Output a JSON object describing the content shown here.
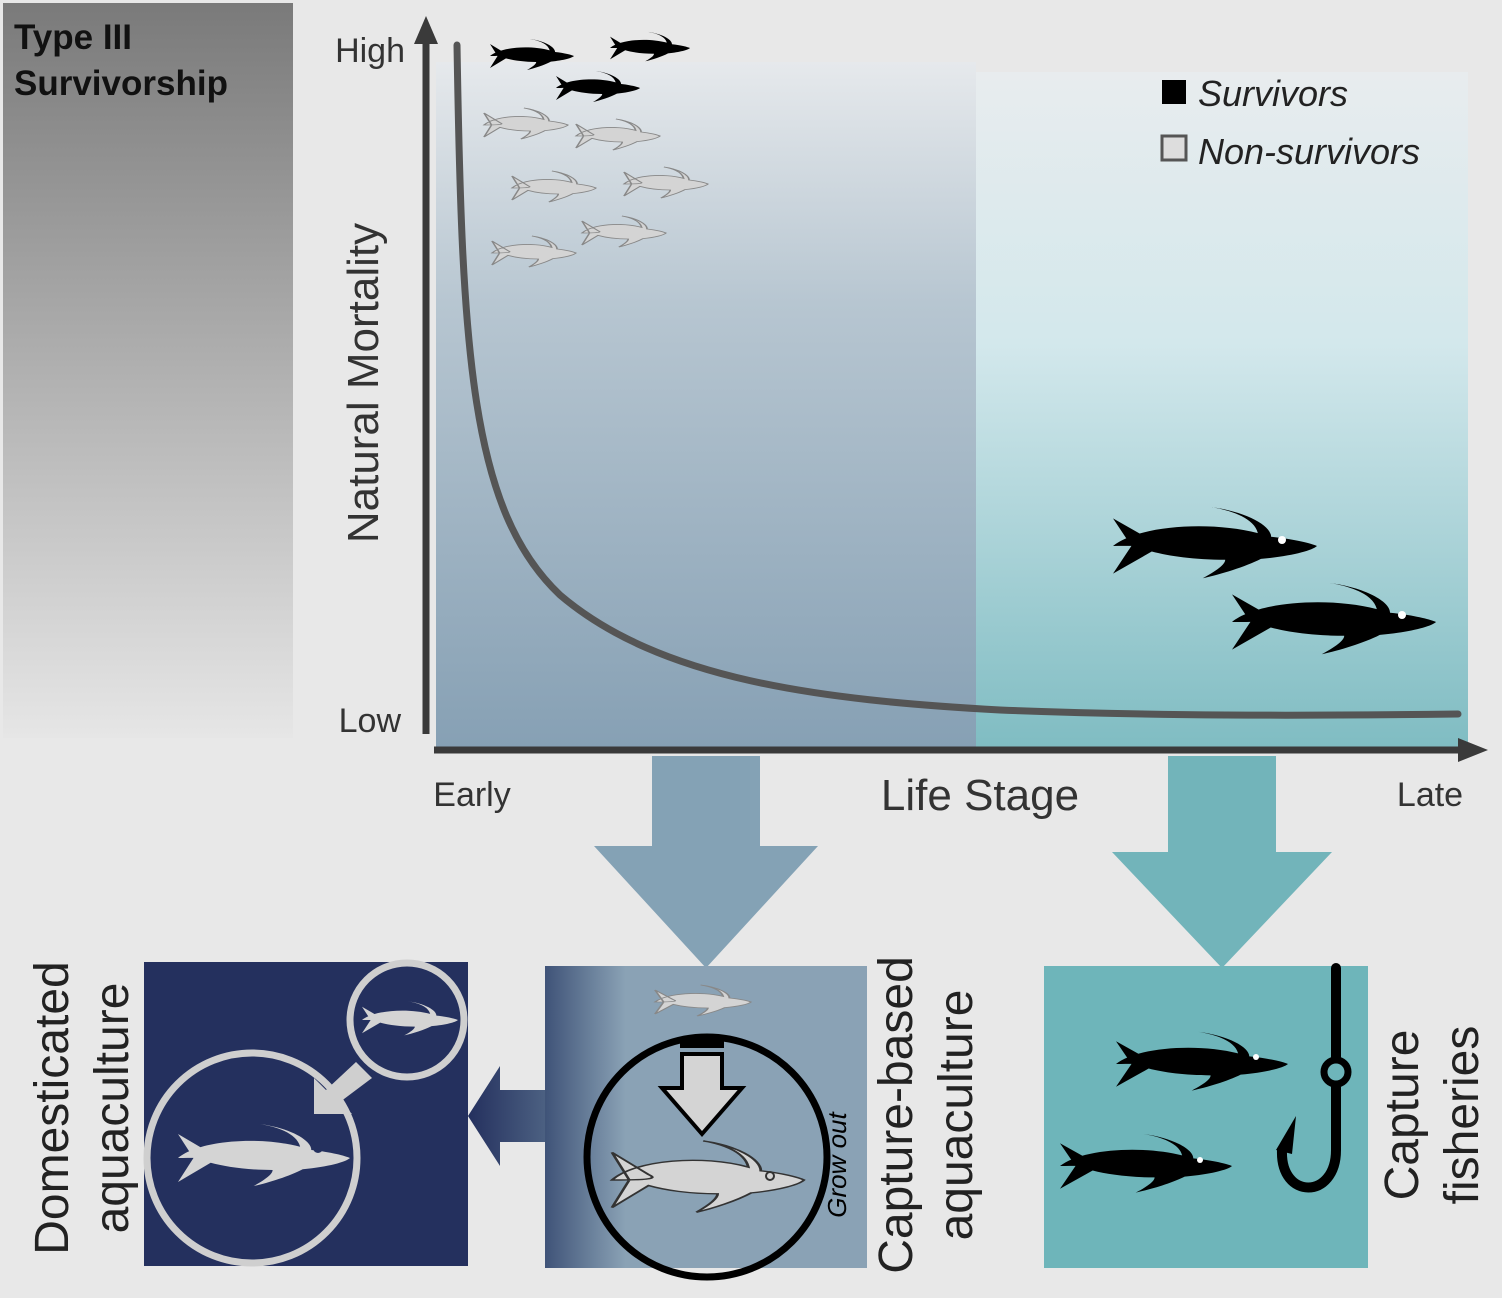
{
  "panel_title": [
    "Type III",
    "Survivorship"
  ],
  "y_axis": {
    "label": "Natural Mortality",
    "high": "High",
    "low": "Low"
  },
  "x_axis": {
    "label": "Life Stage",
    "early": "Early",
    "late": "Late"
  },
  "legend": {
    "survivors": "Survivors",
    "non_survivors": "Non-survivors"
  },
  "boxes": {
    "domesticated": {
      "label_lines": [
        "Domesticated",
        "aquaculture"
      ],
      "color": "#24305e"
    },
    "capture_based": {
      "label_lines": [
        "Capture-based",
        "aquaculture"
      ],
      "grow_out": "Grow out",
      "color": "#8aa2b5"
    },
    "capture_fisheries": {
      "label_lines": [
        "Capture",
        "fisheries"
      ],
      "color": "#6eb5ba"
    }
  },
  "colors": {
    "early_stage": "#87a1b5",
    "late_stage": "#7fbcc1",
    "survivor_fish": "#000000",
    "non_survivor_fish": "#d4d4d4",
    "axis": "#3a3a3a"
  }
}
